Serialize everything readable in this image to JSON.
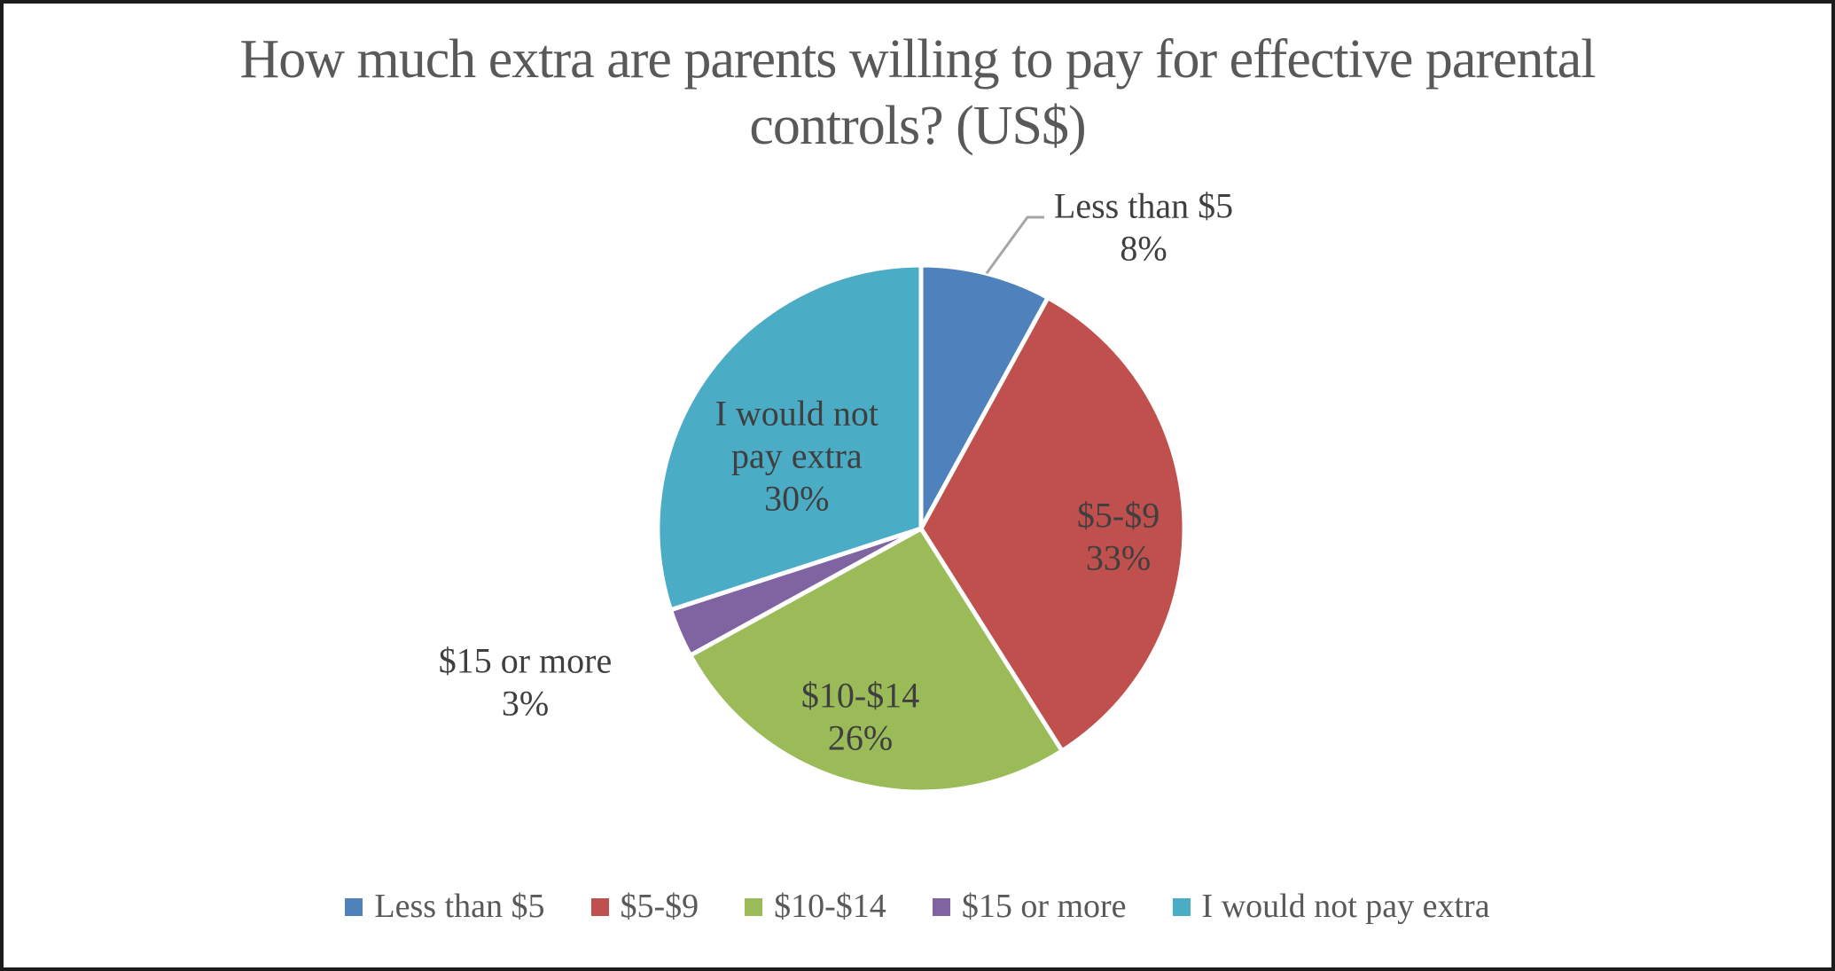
{
  "title": "How much extra are parents willing to pay for effective parental controls? (US$)",
  "chart_data": {
    "type": "pie",
    "title": "How much extra are parents willing to pay for effective parental controls? (US$)",
    "categories": [
      "Less than $5",
      "$5-$9",
      "$10-$14",
      "$15 or more",
      "I would not pay extra"
    ],
    "values": [
      8,
      33,
      26,
      3,
      30
    ],
    "unit": "%",
    "colors": [
      "#4F81BD",
      "#C0504D",
      "#9BBB59",
      "#8064A2",
      "#4BACC6"
    ],
    "legend_position": "bottom",
    "legend": [
      "Less than $5",
      "$5-$9",
      "$10-$14",
      "$15 or more",
      "I would not pay extra"
    ],
    "text_colors": {
      "title": "#595959",
      "data_labels": "#3f3f3f",
      "legend": "#595959",
      "leader_line": "#A6A6A6"
    },
    "slices": [
      {
        "label": "Less than $5",
        "pct": 8,
        "color": "#4F81BD",
        "label_lines": [
          "Less than $5",
          "8%"
        ],
        "placement": {
          "type": "callout",
          "text_center": [
            1286,
            252
          ],
          "elbow": [
            1155,
            241
          ],
          "end": [
            1174,
            241
          ]
        }
      },
      {
        "label": "$5-$9",
        "pct": 33,
        "color": "#C0504D",
        "label_lines": [
          "$5-$9",
          "33%"
        ],
        "placement": {
          "type": "inside",
          "r_frac": 0.75,
          "offset": [
            0,
            16
          ]
        }
      },
      {
        "label": "$10-$14",
        "pct": 26,
        "color": "#9BBB59",
        "label_lines": [
          "$10-$14",
          "26%"
        ],
        "placement": {
          "type": "inside",
          "r_frac": 0.75,
          "offset": [
            -13,
            -4
          ]
        }
      },
      {
        "label": "$15 or more",
        "pct": 3,
        "color": "#8064A2",
        "label_lines": [
          "$15 or more",
          "3%"
        ],
        "placement": {
          "type": "outside",
          "r_frac": 1.55,
          "offset": [
            -24,
            -10
          ]
        }
      },
      {
        "label": "I would not pay extra",
        "pct": 30,
        "color": "#4BACC6",
        "label_lines": [
          "I would not",
          "pay extra",
          "30%"
        ],
        "placement": {
          "type": "inside",
          "r_frac": 0.55,
          "offset": [
            -8,
            14
          ]
        }
      }
    ]
  }
}
